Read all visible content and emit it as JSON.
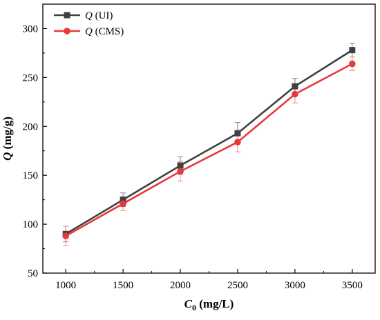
{
  "colors": {
    "background": "#ffffff",
    "axis": "#000000",
    "series_ui": "#404040",
    "series_cms": "#e8383d",
    "error_ui": "#7f7f7f",
    "error_cms": "#f08a8e"
  },
  "chart_data": {
    "type": "line",
    "title": "",
    "xlabel": {
      "main": "C",
      "sub": "0",
      "unit": " (mg/L)"
    },
    "ylabel": {
      "main": "Q",
      "unit": " (mg/g)"
    },
    "x": [
      1000,
      1500,
      2000,
      2500,
      3000,
      3500
    ],
    "xlim": [
      800,
      3700
    ],
    "ylim": [
      50,
      325
    ],
    "xticks": [
      1000,
      1500,
      2000,
      2500,
      3000,
      3500
    ],
    "yticks": [
      50,
      100,
      150,
      200,
      250,
      300
    ],
    "grid": false,
    "legend_position": "top-left",
    "series": [
      {
        "name_italic": "Q",
        "name_rest": " (UI)",
        "marker": "square",
        "color": "#404040",
        "error_color": "#7f7f7f",
        "values": [
          90,
          125,
          160,
          193,
          241,
          278
        ],
        "errors": [
          8,
          7,
          9,
          11,
          8,
          7
        ]
      },
      {
        "name_italic": "Q",
        "name_rest": " (CMS)",
        "marker": "circle",
        "color": "#e8383d",
        "error_color": "#f08a8e",
        "values": [
          88,
          121,
          154,
          184,
          233,
          264
        ],
        "errors": [
          10,
          7,
          10,
          10,
          9,
          7
        ]
      }
    ]
  }
}
